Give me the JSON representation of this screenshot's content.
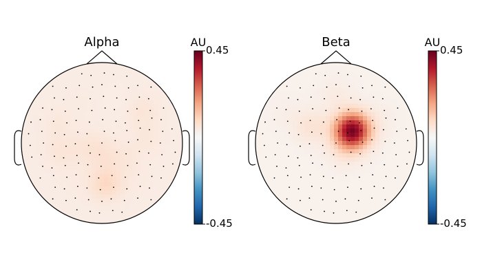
{
  "chart_data": [
    {
      "type": "heatmap",
      "subtype": "topomap",
      "title": "Alpha",
      "colorbar": {
        "label": "AU",
        "max_label": "0.45",
        "min_label": "-0.45",
        "vmin": -0.45,
        "vmax": 0.45,
        "colormap": "RdBu_r"
      },
      "field": [
        {
          "x": -0.55,
          "y": 0.25,
          "value": 0.05
        },
        {
          "x": -0.5,
          "y": -0.1,
          "value": 0.06
        },
        {
          "x": -0.15,
          "y": -0.05,
          "value": 0.06
        },
        {
          "x": 0.05,
          "y": -0.15,
          "value": 0.06
        },
        {
          "x": 0.05,
          "y": -0.5,
          "value": 0.1
        },
        {
          "x": 0.5,
          "y": 0.4,
          "value": 0.06
        },
        {
          "x": 0.55,
          "y": 0.05,
          "value": 0.05
        },
        {
          "x": 0.3,
          "y": -0.2,
          "value": 0.05
        },
        {
          "x": -0.25,
          "y": 0.5,
          "value": 0.04
        },
        {
          "x": 0.2,
          "y": 0.55,
          "value": 0.03
        },
        {
          "x": -0.35,
          "y": -0.45,
          "value": 0.04
        },
        {
          "x": 0.45,
          "y": -0.45,
          "value": 0.04
        }
      ],
      "baseline_value": 0.035
    },
    {
      "type": "heatmap",
      "subtype": "topomap",
      "title": "Beta",
      "colorbar": {
        "label": "AU",
        "max_label": "0.45",
        "min_label": "-0.45",
        "vmin": -0.45,
        "vmax": 0.45,
        "colormap": "RdBu_r"
      },
      "field": [
        {
          "x": 0.2,
          "y": 0.15,
          "value": 0.43
        },
        {
          "x": -0.3,
          "y": 0.2,
          "value": 0.07
        },
        {
          "x": 0.0,
          "y": 0.6,
          "value": 0.04
        },
        {
          "x": 0.1,
          "y": -0.1,
          "value": 0.05
        },
        {
          "x": -0.4,
          "y": -0.3,
          "value": 0.02
        },
        {
          "x": 0.55,
          "y": 0.3,
          "value": 0.03
        },
        {
          "x": -0.6,
          "y": 0.35,
          "value": 0.03
        }
      ],
      "baseline_value": 0.02
    }
  ]
}
